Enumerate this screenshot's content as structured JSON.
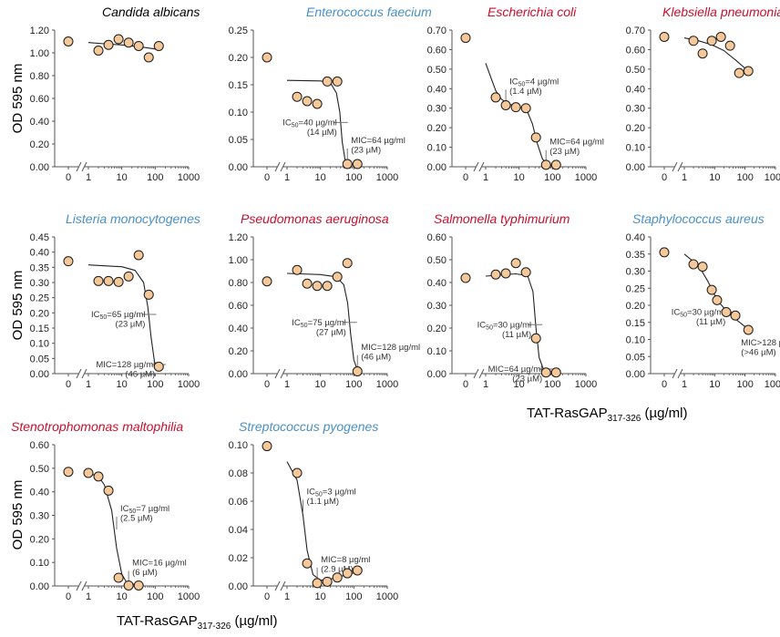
{
  "ylabel": "OD 595 nm",
  "xlabel": {
    "main": "TAT-RasGAP",
    "sub": "317-326",
    "unit": "(µg/ml)"
  },
  "colors": {
    "blue": "#4a90c8",
    "red": "#c8102e",
    "black": "#000000",
    "marker_fill": "#f5c89a",
    "marker_edge": "#1a1a1a",
    "curve": "#222222"
  },
  "chart_data": [
    {
      "type": "scatter",
      "title": "Candida albicans",
      "title_color": "black",
      "ylim": [
        0,
        1.2
      ],
      "yticks": [
        "0.00",
        "0.20",
        "0.40",
        "0.60",
        "0.80",
        "1.00",
        "1.20"
      ],
      "xticks": [
        "0",
        "1",
        "10",
        "100",
        "1000"
      ],
      "points": [
        [
          0,
          1.1
        ],
        [
          2,
          1.02
        ],
        [
          4,
          1.07
        ],
        [
          8,
          1.12
        ],
        [
          16,
          1.09
        ],
        [
          32,
          1.06
        ],
        [
          64,
          0.96
        ],
        [
          128,
          1.06
        ]
      ],
      "curve": [
        [
          1,
          1.09
        ],
        [
          3,
          1.08
        ],
        [
          10,
          1.07
        ],
        [
          40,
          1.05
        ],
        [
          128,
          1.03
        ]
      ],
      "annotations": []
    },
    {
      "type": "scatter",
      "title": "Enterococcus faecium",
      "title_color": "blue",
      "ylim": [
        0,
        0.25
      ],
      "yticks": [
        "0.00",
        "0.05",
        "0.10",
        "0.15",
        "0.20",
        "0.25"
      ],
      "xticks": [
        "0",
        "1",
        "10",
        "100",
        "1000"
      ],
      "points": [
        [
          0,
          0.2
        ],
        [
          2,
          0.128
        ],
        [
          4,
          0.12
        ],
        [
          8,
          0.115
        ],
        [
          16,
          0.156
        ],
        [
          32,
          0.156
        ],
        [
          64,
          0.005
        ],
        [
          128,
          0.005
        ]
      ],
      "curve": [
        [
          1,
          0.158
        ],
        [
          10,
          0.157
        ],
        [
          20,
          0.153
        ],
        [
          30,
          0.135
        ],
        [
          38,
          0.1
        ],
        [
          45,
          0.045
        ],
        [
          55,
          0.012
        ],
        [
          70,
          0.004
        ],
        [
          128,
          0.003
        ]
      ],
      "annotations": [
        {
          "lines": [
            "IC50=40 µg/ml",
            "(14 µM)"
          ],
          "x": 40,
          "y": 0.081,
          "side": "left"
        },
        {
          "lines": [
            "MIC=64 µg/ml",
            "(23 µM)"
          ],
          "x": 64,
          "y": 0.01,
          "side": "right"
        }
      ]
    },
    {
      "type": "scatter",
      "title": "Escherichia coli",
      "title_color": "red",
      "ylim": [
        0,
        0.7
      ],
      "yticks": [
        "0.00",
        "0.10",
        "0.20",
        "0.30",
        "0.40",
        "0.50",
        "0.60",
        "0.70"
      ],
      "xticks": [
        "0",
        "1",
        "10",
        "100",
        "1000"
      ],
      "points": [
        [
          0,
          0.66
        ],
        [
          2,
          0.355
        ],
        [
          4,
          0.315
        ],
        [
          8,
          0.305
        ],
        [
          16,
          0.3
        ],
        [
          32,
          0.15
        ],
        [
          64,
          0.01
        ],
        [
          128,
          0.01
        ]
      ],
      "curve": [
        [
          1,
          0.53
        ],
        [
          2,
          0.39
        ],
        [
          3,
          0.345
        ],
        [
          5,
          0.32
        ],
        [
          10,
          0.31
        ],
        [
          18,
          0.28
        ],
        [
          25,
          0.22
        ],
        [
          35,
          0.12
        ],
        [
          50,
          0.04
        ],
        [
          70,
          0.01
        ],
        [
          128,
          0.005
        ]
      ],
      "annotations": [
        {
          "lines": [
            "IC50=4 µg/ml",
            "(1.4 µM)"
          ],
          "x": 4,
          "y": 0.33,
          "side": "right"
        },
        {
          "lines": [
            "MIC=64 µg/ml",
            "(23 µM)"
          ],
          "x": 64,
          "y": 0.02,
          "side": "right"
        }
      ]
    },
    {
      "type": "scatter",
      "title": "Klebsiella pneumoniae",
      "title_color": "red",
      "ylim": [
        0,
        0.7
      ],
      "yticks": [
        "0.00",
        "0.10",
        "0.20",
        "0.30",
        "0.40",
        "0.50",
        "0.60",
        "0.70"
      ],
      "xticks": [
        "0",
        "1",
        "10",
        "100",
        "1000"
      ],
      "points": [
        [
          0,
          0.665
        ],
        [
          2,
          0.645
        ],
        [
          4,
          0.58
        ],
        [
          8,
          0.645
        ],
        [
          16,
          0.665
        ],
        [
          32,
          0.62
        ],
        [
          64,
          0.48
        ],
        [
          128,
          0.49
        ]
      ],
      "curve": [
        [
          1,
          0.66
        ],
        [
          3,
          0.645
        ],
        [
          8,
          0.625
        ],
        [
          20,
          0.595
        ],
        [
          50,
          0.545
        ],
        [
          128,
          0.49
        ]
      ],
      "annotations": []
    },
    {
      "type": "scatter",
      "title": "Listeria monocytogenes",
      "title_color": "blue",
      "ylim": [
        0,
        0.45
      ],
      "yticks": [
        "0.00",
        "0.05",
        "0.10",
        "0.15",
        "0.20",
        "0.25",
        "0.30",
        "0.35",
        "0.40",
        "0.45"
      ],
      "xticks": [
        "0",
        "1",
        "10",
        "100",
        "1000"
      ],
      "points": [
        [
          0,
          0.37
        ],
        [
          2,
          0.305
        ],
        [
          4,
          0.305
        ],
        [
          8,
          0.302
        ],
        [
          16,
          0.32
        ],
        [
          32,
          0.39
        ],
        [
          64,
          0.26
        ],
        [
          128,
          0.023
        ]
      ],
      "curve": [
        [
          1,
          0.358
        ],
        [
          10,
          0.352
        ],
        [
          25,
          0.34
        ],
        [
          45,
          0.3
        ],
        [
          60,
          0.22
        ],
        [
          75,
          0.12
        ],
        [
          95,
          0.04
        ],
        [
          128,
          0.01
        ]
      ],
      "annotations": [
        {
          "lines": [
            "IC50=65 µg/ml",
            "(23 µM)"
          ],
          "x": 65,
          "y": 0.195,
          "side": "left"
        },
        {
          "lines": [
            "MIC=128 µg/ml",
            "(46 µM)"
          ],
          "x": 128,
          "y": 0.03,
          "side": "left"
        }
      ]
    },
    {
      "type": "scatter",
      "title": "Pseudomonas aeruginosa",
      "title_color": "red",
      "ylim": [
        0,
        1.2
      ],
      "yticks": [
        "0.00",
        "0.20",
        "0.40",
        "0.60",
        "0.80",
        "1.00",
        "1.20"
      ],
      "xticks": [
        "0",
        "1",
        "10",
        "100",
        "1000"
      ],
      "points": [
        [
          0,
          0.81
        ],
        [
          2,
          0.91
        ],
        [
          4,
          0.79
        ],
        [
          8,
          0.77
        ],
        [
          16,
          0.77
        ],
        [
          32,
          0.85
        ],
        [
          64,
          0.97
        ],
        [
          128,
          0.02
        ]
      ],
      "curve": [
        [
          1,
          0.88
        ],
        [
          10,
          0.87
        ],
        [
          30,
          0.85
        ],
        [
          50,
          0.78
        ],
        [
          65,
          0.62
        ],
        [
          80,
          0.35
        ],
        [
          100,
          0.12
        ],
        [
          128,
          0.03
        ]
      ],
      "annotations": [
        {
          "lines": [
            "IC50=75 µg/ml",
            "(27 µM)"
          ],
          "x": 75,
          "y": 0.45,
          "side": "left"
        },
        {
          "lines": [
            "MIC=128 µg/ml",
            "(46 µM)"
          ],
          "x": 128,
          "y": 0.05,
          "side": "right"
        }
      ]
    },
    {
      "type": "scatter",
      "title": "Salmonella typhimurium",
      "title_color": "red",
      "ylim": [
        0,
        0.6
      ],
      "yticks": [
        "0.00",
        "0.10",
        "0.20",
        "0.30",
        "0.40",
        "0.50",
        "0.60"
      ],
      "xticks": [
        "0",
        "1",
        "10",
        "100",
        "1000"
      ],
      "points": [
        [
          0,
          0.42
        ],
        [
          2,
          0.435
        ],
        [
          4,
          0.44
        ],
        [
          8,
          0.485
        ],
        [
          16,
          0.445
        ],
        [
          32,
          0.155
        ],
        [
          64,
          0.005
        ],
        [
          128,
          0.005
        ]
      ],
      "curve": [
        [
          1,
          0.428
        ],
        [
          8,
          0.438
        ],
        [
          18,
          0.43
        ],
        [
          26,
          0.36
        ],
        [
          32,
          0.2
        ],
        [
          40,
          0.07
        ],
        [
          55,
          0.015
        ],
        [
          128,
          0.005
        ]
      ],
      "annotations": [
        {
          "lines": [
            "IC50=30 µg/ml",
            "(11 µM)"
          ],
          "x": 30,
          "y": 0.215,
          "side": "left"
        },
        {
          "lines": [
            "MIC=64 µg/ml",
            "(23 µM)"
          ],
          "x": 64,
          "y": 0.02,
          "side": "left"
        }
      ]
    },
    {
      "type": "scatter",
      "title": "Staphylococcus aureus",
      "title_color": "blue",
      "ylim": [
        0,
        0.4
      ],
      "yticks": [
        "0.00",
        "0.05",
        "0.10",
        "0.15",
        "0.20",
        "0.25",
        "0.30",
        "0.35",
        "0.40"
      ],
      "xticks": [
        "0",
        "1",
        "10",
        "100",
        "1000"
      ],
      "points": [
        [
          0,
          0.355
        ],
        [
          2,
          0.32
        ],
        [
          4,
          0.313
        ],
        [
          8,
          0.245
        ],
        [
          12,
          0.215
        ],
        [
          24,
          0.18
        ],
        [
          48,
          0.17
        ],
        [
          128,
          0.128
        ]
      ],
      "curve": [
        [
          1,
          0.35
        ],
        [
          3,
          0.315
        ],
        [
          6,
          0.27
        ],
        [
          12,
          0.215
        ],
        [
          30,
          0.175
        ],
        [
          128,
          0.13
        ]
      ],
      "annotations": [
        {
          "lines": [
            "IC50=30 µg/ml",
            "(11 µM)"
          ],
          "x": 30,
          "y": 0.18,
          "side": "left"
        },
        {
          "lines": [
            "MIC>128 µg/ml",
            "(>46 µM)"
          ],
          "x": 128,
          "y": 0.125,
          "side": "below"
        }
      ]
    },
    {
      "type": "scatter",
      "title": "Stenotrophomonas maltophilia",
      "title_color": "red",
      "ylim": [
        0,
        0.6
      ],
      "yticks": [
        "0.00",
        "0.10",
        "0.20",
        "0.30",
        "0.40",
        "0.50",
        "0.60"
      ],
      "xticks": [
        "0",
        "1",
        "10",
        "100",
        "1000"
      ],
      "points": [
        [
          0,
          0.485
        ],
        [
          1,
          0.48
        ],
        [
          2,
          0.465
        ],
        [
          4,
          0.405
        ],
        [
          8,
          0.035
        ],
        [
          16,
          0.002
        ],
        [
          32,
          0.002
        ]
      ],
      "curve": [
        [
          1,
          0.48
        ],
        [
          2,
          0.465
        ],
        [
          3,
          0.43
        ],
        [
          5,
          0.32
        ],
        [
          7,
          0.16
        ],
        [
          10,
          0.05
        ],
        [
          14,
          0.015
        ],
        [
          32,
          0.002
        ]
      ],
      "annotations": [
        {
          "lines": [
            "IC50=7 µg/ml",
            "(2.5 µM)"
          ],
          "x": 7,
          "y": 0.24,
          "side": "right"
        },
        {
          "lines": [
            "MIC=16 µg/ml",
            "(6 µM)"
          ],
          "x": 16,
          "y": 0.01,
          "side": "right"
        }
      ]
    },
    {
      "type": "scatter",
      "title": "Streptococcus pyogenes",
      "title_color": "blue",
      "ylim": [
        0,
        0.1
      ],
      "yticks": [
        "0.00",
        "0.02",
        "0.04",
        "0.06",
        "0.08",
        "0.10"
      ],
      "xticks": [
        "0",
        "1",
        "10",
        "100",
        "1000"
      ],
      "points": [
        [
          0,
          0.099
        ],
        [
          2,
          0.08
        ],
        [
          4,
          0.016
        ],
        [
          8,
          0.002
        ],
        [
          16,
          0.003
        ],
        [
          32,
          0.006
        ],
        [
          64,
          0.009
        ],
        [
          128,
          0.011
        ]
      ],
      "curve": [
        [
          1,
          0.088
        ],
        [
          2,
          0.075
        ],
        [
          3,
          0.05
        ],
        [
          4,
          0.025
        ],
        [
          6,
          0.008
        ],
        [
          10,
          0.004
        ],
        [
          20,
          0.005
        ],
        [
          64,
          0.008
        ],
        [
          128,
          0.01
        ]
      ],
      "annotations": [
        {
          "lines": [
            "IC50=3 µg/ml",
            "(1.1 µM)"
          ],
          "x": 3,
          "y": 0.052,
          "side": "right"
        },
        {
          "lines": [
            "MIC=8 µg/ml",
            "(2.9 µM)"
          ],
          "x": 8,
          "y": 0.004,
          "side": "right"
        }
      ]
    }
  ]
}
